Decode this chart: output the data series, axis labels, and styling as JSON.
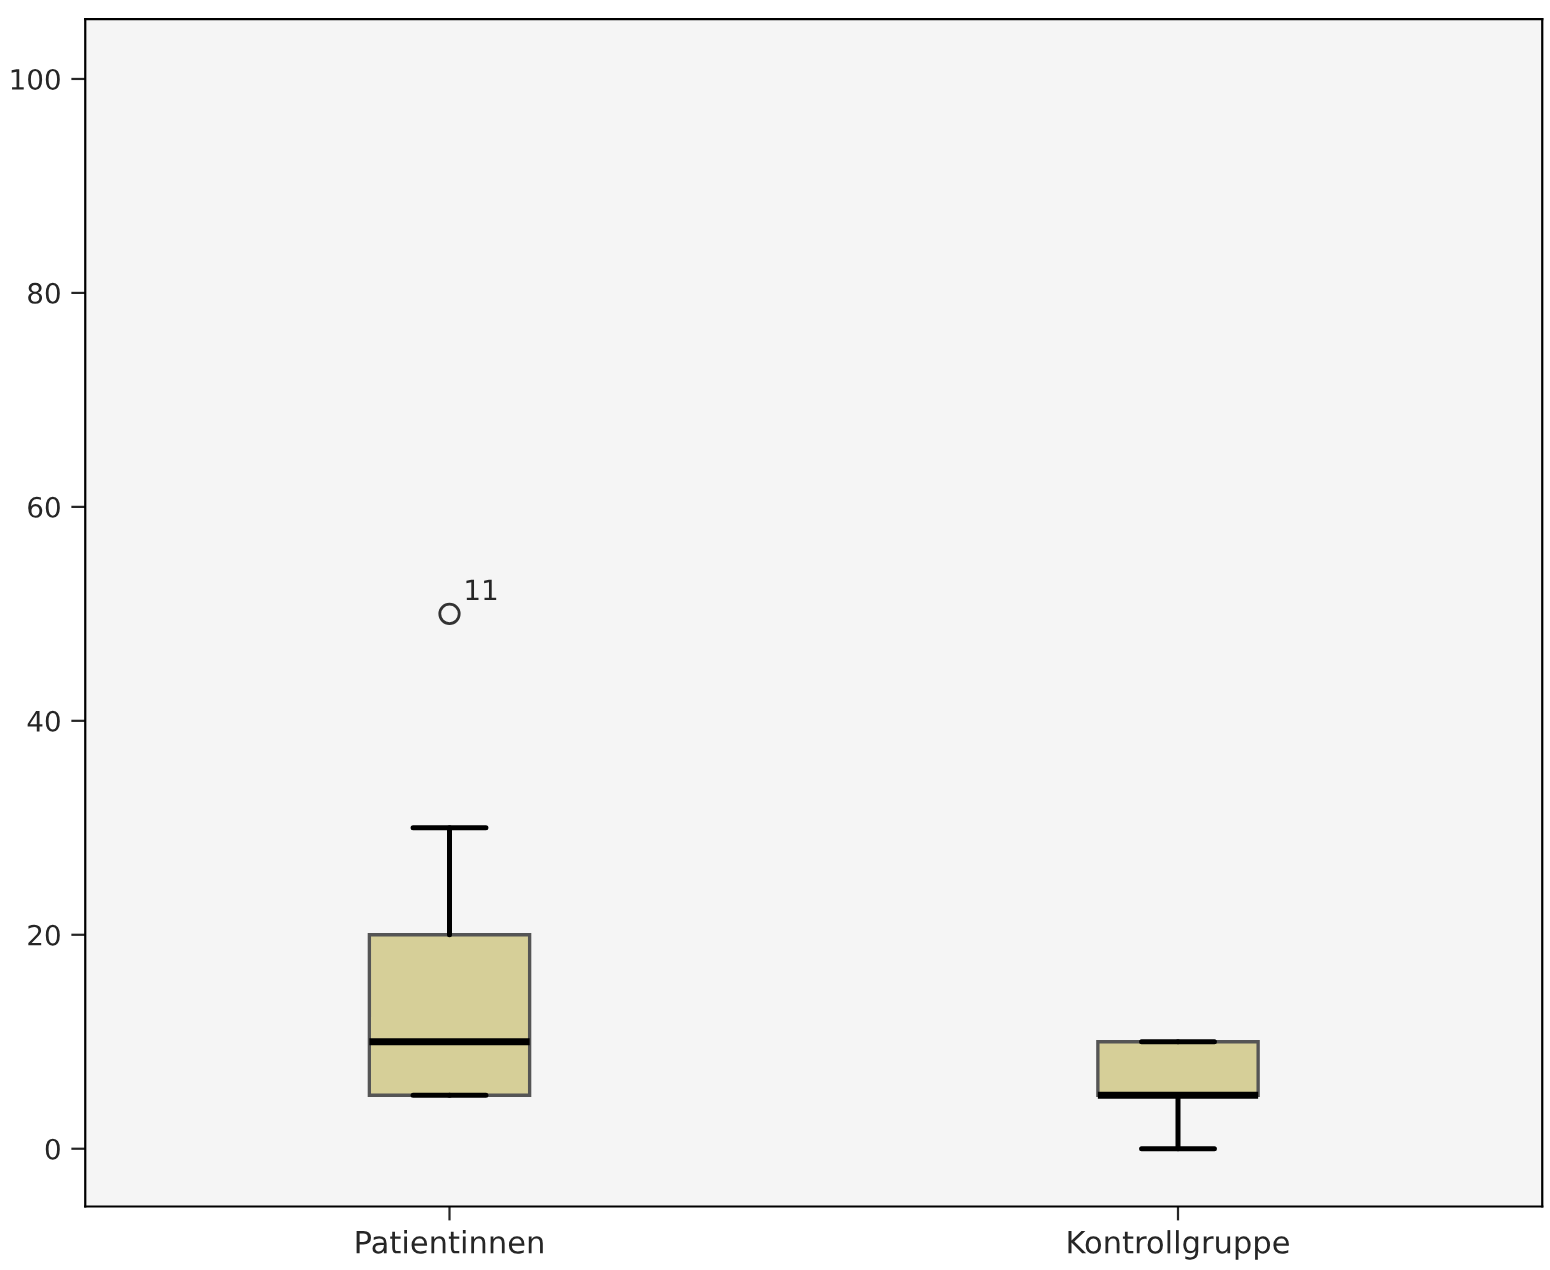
{
  "chart_data": {
    "type": "box",
    "categories": [
      "Patientinnen",
      "Kontrollgruppe"
    ],
    "boxes": [
      {
        "low": 5,
        "q1": 5,
        "median": 10,
        "q3": 20,
        "high": 30,
        "outliers": [
          50
        ]
      },
      {
        "low": 0,
        "q1": 5,
        "median": 5,
        "q3": 10,
        "high": 10
      }
    ],
    "color": "#d6cf98",
    "ylim": [
      -5.4,
      105.6
    ],
    "yticks": [
      0,
      20,
      40,
      60,
      80,
      100
    ],
    "annotations": [
      "11"
    ],
    "grid": false,
    "legend": false
  }
}
